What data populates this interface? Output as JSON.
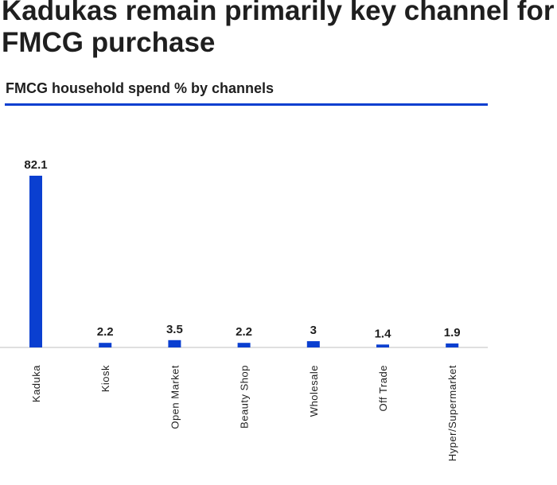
{
  "header": {
    "title_line1": "Kadukas remain primarily key channel for",
    "title_line2": "FMCG purchase"
  },
  "chart_data": {
    "type": "bar",
    "title": "FMCG household spend % by channels",
    "categories": [
      "Kaduka",
      "Kiosk",
      "Open Market",
      "Beauty Shop",
      "Wholesale",
      "Off Trade",
      "Hyper/Supermarket"
    ],
    "values": [
      82.1,
      2.2,
      3.5,
      2.2,
      3,
      1.4,
      1.9
    ],
    "value_labels": [
      "82.1",
      "2.2",
      "3.5",
      "2.2",
      "3",
      "1.4",
      "1.9"
    ],
    "xlabel": "",
    "ylabel": "",
    "ylim": [
      0,
      82.1
    ],
    "grid": false,
    "legend": "none",
    "colors": {
      "bar": "#0a3fd0",
      "accent_rule": "#0a3fd0",
      "axis": "#bfbfbf",
      "text": "#1f1f1f"
    }
  }
}
